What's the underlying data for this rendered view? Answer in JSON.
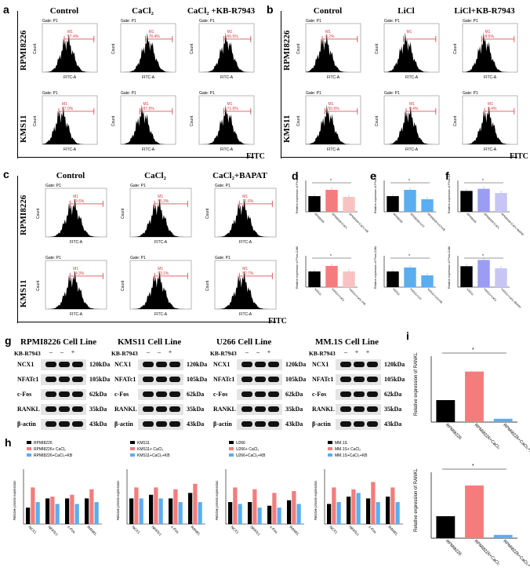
{
  "panels": {
    "a": {
      "label": "a",
      "columns": [
        "Control",
        "CaCl₂",
        "CaCl₂ +KB-R7943"
      ],
      "rows": [
        "RPMI8226",
        "KMS11"
      ],
      "axis": "FITC",
      "gate": "Gate: P1",
      "ylabel": "Count",
      "xlabel": "FITC-A",
      "marker": "M1",
      "percents": [
        [
          "57.4%",
          "78.4%",
          "66.5%"
        ],
        [
          "67.0%",
          "87.5%",
          "71.6%"
        ]
      ]
    },
    "b": {
      "label": "b",
      "columns": [
        "Control",
        "LiCl",
        "LiCl+KB-R7943"
      ],
      "rows": [
        "RPMI8226",
        "KMS11"
      ],
      "axis": "FITC",
      "gate": "Gate: P1",
      "ylabel": "Count",
      "xlabel": "FITC-A",
      "marker": "M1",
      "percents": [
        [
          "8.2%",
          "",
          "8.6%"
        ],
        [
          "50.6%",
          "8.4%",
          "8.4%"
        ]
      ]
    },
    "c": {
      "label": "c",
      "columns": [
        "Control",
        "CaCl₂",
        "CaCl₂+BAPAT"
      ],
      "rows": [
        "RPMI8226",
        "KMS11"
      ],
      "axis": "FITC",
      "gate": "Gate: P1",
      "ylabel": "Count",
      "xlabel": "FITC-A",
      "marker": "M1",
      "percents": [
        [
          "79.6%",
          "85.3%",
          "71.6%"
        ],
        [
          "74.3%",
          "93.1%",
          "82.7%"
        ]
      ]
    },
    "d": {
      "label": "d",
      "ylabel": "Relative expression of Phos-CAM",
      "xcats_top": [
        "RPMI8226",
        "RPMI8226+CaCl₂",
        "RPMI8226+CaCl₂+KB"
      ],
      "xcats_bottom": [
        "KMS11",
        "KMS11+CaCl₂",
        "KMS11+CaCl₂+KB"
      ]
    },
    "e": {
      "label": "e",
      "ylabel": "Relative expression of Phos-CAM",
      "xcats_top": [
        "RPMI8226",
        "RPMI8226+LiCl",
        "RPMI8226+LiCl+KB"
      ],
      "xcats_bottom": [
        "KMS11",
        "KMS11+LiCl",
        "KMS11+LiCl+KB"
      ]
    },
    "f": {
      "label": "f",
      "ylabel": "Relative expression of Phos-CAM",
      "xcats_top": [
        "RPMI8226",
        "RPMI8226+CaCl₂",
        "RPMI8226+CaCl₂+BAPAT"
      ],
      "xcats_bottom": [
        "KMS11",
        "KMS11+CaCl₂",
        "KMS11+CaCl₂+BAPAT"
      ]
    },
    "g": {
      "label": "g",
      "blots": [
        {
          "title": "RPMI8226 Cell Line",
          "kb": "KB-R7943",
          "signs": [
            "–",
            "–",
            "+"
          ]
        },
        {
          "title": "KMS11 Cell Line",
          "kb": "KB-R7943",
          "signs": [
            "–",
            "–",
            "+"
          ]
        },
        {
          "title": "U266 Cell Line",
          "kb": "KB-R7943",
          "signs": [
            "–",
            "–",
            "+"
          ]
        },
        {
          "title": "MM.1S Cell Line",
          "kb": "KB-R7943",
          "signs": [
            "–",
            "+",
            "+"
          ]
        }
      ],
      "proteins": [
        "NCX1",
        "NFATc1",
        "c-Fos",
        "RANKL",
        "β-actin"
      ],
      "sizes": [
        "120kDa",
        "105kDa",
        "62kDa",
        "35kDa",
        "43kDa"
      ]
    },
    "h": {
      "label": "h",
      "ylabel": "Relative protein expression",
      "cats": [
        "NCX1",
        "NFATc1",
        "c-Fos",
        "RANKL"
      ],
      "groups": [
        {
          "legend": [
            "RPMI8226",
            "RPMI8226+ CaCl₂",
            "RPMI8226+CaCl₂+KB"
          ]
        },
        {
          "legend": [
            "KMS11",
            "KMS11+ CaCl₂",
            "KMS11+CaCl₂+KB"
          ]
        },
        {
          "legend": [
            "U266",
            "U266+ CaCl₂",
            "U266+CaCl₂+KB"
          ]
        },
        {
          "legend": [
            "MM.1S",
            "MM.1S+ CaCl₂",
            "MM.1S+CaCl₂+KB"
          ]
        }
      ]
    },
    "i": {
      "label": "i",
      "ylabel": "Relative expression of RANKL",
      "cats": [
        "RPMI8226",
        "RPMI8226+CaCl₂",
        "RPMI8226+CaCl₂+KB"
      ]
    }
  },
  "colors": {
    "black": "#000000",
    "red": "#f47c7c",
    "pink": "#f9c2c2",
    "blue": "#5aaef0",
    "violet": "#9b9cf4",
    "lavender": "#c7c5f5",
    "marker": "#d9363e"
  },
  "chart_data": [
    {
      "type": "bar",
      "title": "d (RPMI8226)",
      "categories": [
        "RPMI8226",
        "RPMI8226+CaCl₂",
        "RPMI8226+CaCl₂+KB"
      ],
      "values": [
        1.0,
        1.4,
        0.95
      ],
      "ylim": [
        0,
        2
      ]
    },
    {
      "type": "bar",
      "title": "d (KMS11)",
      "categories": [
        "KMS11",
        "KMS11+CaCl₂",
        "KMS11+CaCl₂+KB"
      ],
      "values": [
        1.0,
        1.35,
        1.0
      ],
      "ylim": [
        0,
        2
      ]
    },
    {
      "type": "bar",
      "title": "e (RPMI8226)",
      "categories": [
        "RPMI8226",
        "RPMI8226+LiCl",
        "RPMI8226+LiCl+KB"
      ],
      "values": [
        1.0,
        1.4,
        0.8
      ],
      "ylim": [
        0,
        2
      ]
    },
    {
      "type": "bar",
      "title": "e (KMS11)",
      "categories": [
        "KMS11",
        "KMS11+LiCl",
        "KMS11+LiCl+KB"
      ],
      "values": [
        1.0,
        1.25,
        0.75
      ],
      "ylim": [
        0,
        2
      ]
    },
    {
      "type": "bar",
      "title": "f (RPMI8226)",
      "categories": [
        "RPMI8226",
        "RPMI8226+CaCl₂",
        "RPMI8226+CaCl₂+BAPAT"
      ],
      "values": [
        1.0,
        1.1,
        0.9
      ],
      "ylim": [
        0,
        1.5
      ]
    },
    {
      "type": "bar",
      "title": "f (KMS11)",
      "categories": [
        "KMS11",
        "KMS11+CaCl₂",
        "KMS11+CaCl₂+BAPAT"
      ],
      "values": [
        1.0,
        1.3,
        0.9
      ],
      "ylim": [
        0,
        1.5
      ]
    },
    {
      "type": "bar",
      "title": "h RPMI8226",
      "categories": [
        "NCX1",
        "NFATc1",
        "c-Fos",
        "RANKL"
      ],
      "series": [
        {
          "name": "RPMI8226",
          "values": [
            0.45,
            0.7,
            0.7,
            0.7
          ]
        },
        {
          "name": "RPMI8226+ CaCl₂",
          "values": [
            1.0,
            0.75,
            0.8,
            0.95
          ]
        },
        {
          "name": "RPMI8226+CaCl₂+KB",
          "values": [
            0.6,
            0.55,
            0.55,
            0.6
          ]
        }
      ],
      "ylim": [
        0,
        1.5
      ]
    },
    {
      "type": "bar",
      "title": "h KMS11",
      "categories": [
        "NCX1",
        "NFATc1",
        "c-Fos",
        "RANKL"
      ],
      "series": [
        {
          "name": "KMS11",
          "values": [
            0.7,
            0.8,
            0.7,
            0.85
          ]
        },
        {
          "name": "KMS11+ CaCl₂",
          "values": [
            1.0,
            1.0,
            0.95,
            1.1
          ]
        },
        {
          "name": "KMS11+CaCl₂+KB",
          "values": [
            0.7,
            0.7,
            0.6,
            0.6
          ]
        }
      ],
      "ylim": [
        0,
        1.5
      ]
    },
    {
      "type": "bar",
      "title": "h U266",
      "categories": [
        "NCX1",
        "NFATc1",
        "c-Fos",
        "RANKL"
      ],
      "series": [
        {
          "name": "U266",
          "values": [
            0.6,
            0.6,
            0.5,
            0.65
          ]
        },
        {
          "name": "U266+ CaCl₂",
          "values": [
            1.0,
            0.95,
            0.85,
            0.9
          ]
        },
        {
          "name": "U266+CaCl₂+KB",
          "values": [
            0.55,
            0.45,
            0.45,
            0.55
          ]
        }
      ],
      "ylim": [
        0,
        1.5
      ]
    },
    {
      "type": "bar",
      "title": "h MM.1S",
      "categories": [
        "NCX1",
        "NFATc1",
        "c-Fos",
        "RANKL"
      ],
      "series": [
        {
          "name": "MM.1S",
          "values": [
            0.55,
            0.75,
            0.7,
            0.75
          ]
        },
        {
          "name": "MM.1S+ CaCl₂",
          "values": [
            1.0,
            0.95,
            1.15,
            1.0
          ]
        },
        {
          "name": "MM.1S+CaCl₂+KB",
          "values": [
            0.6,
            0.85,
            0.6,
            0.6
          ]
        }
      ],
      "ylim": [
        0,
        1.5
      ]
    },
    {
      "type": "bar",
      "title": "i top",
      "categories": [
        "RPMI8226",
        "RPMI8226+CaCl₂",
        "RPMI8226+CaCl₂+KB"
      ],
      "values": [
        1.0,
        2.3,
        0.15
      ],
      "ylim": [
        0,
        3
      ]
    },
    {
      "type": "bar",
      "title": "i bottom",
      "categories": [
        "RPMI8226",
        "RPMI8226+CaCl₂",
        "RPMI8226+CaCl₂+KB"
      ],
      "values": [
        1.0,
        2.4,
        0.15
      ],
      "ylim": [
        0,
        3
      ]
    }
  ]
}
